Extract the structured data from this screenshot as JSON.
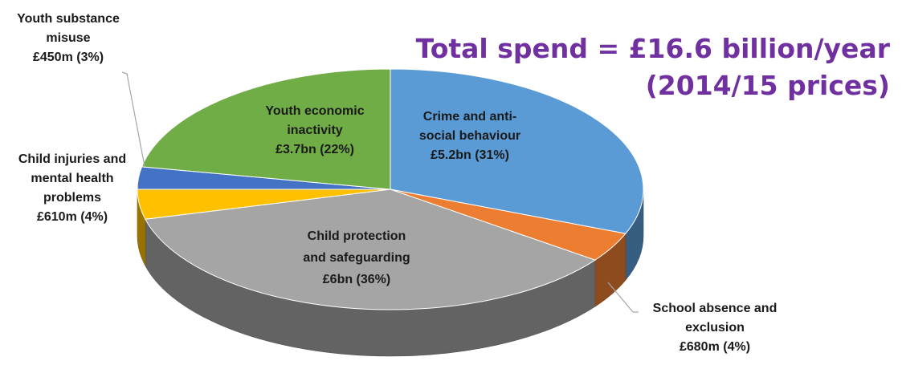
{
  "chart_data": {
    "type": "pie",
    "title": "Total spend = £16.6 billion/year",
    "subtitle": "(2014/15 prices)",
    "slices": [
      {
        "id": "crime",
        "label_lines": [
          "Crime and anti-",
          "social behaviour",
          "£5.2bn (31%)"
        ],
        "value_text": "£5.2bn",
        "value_bn": 5.2,
        "percent": 31,
        "color": "#5b9bd5"
      },
      {
        "id": "school",
        "label_lines": [
          "School absence and",
          "exclusion",
          "£680m (4%)"
        ],
        "value_text": "£680m",
        "value_bn": 0.68,
        "percent": 4,
        "color": "#ed7d31"
      },
      {
        "id": "protection",
        "label_lines": [
          "Child protection",
          "and safeguarding",
          "£6bn (36%)"
        ],
        "value_text": "£6bn",
        "value_bn": 6.0,
        "percent": 36,
        "color": "#a5a5a5"
      },
      {
        "id": "injuries",
        "label_lines": [
          "Child injuries and",
          "mental health",
          "problems",
          "£610m (4%)"
        ],
        "value_text": "£610m",
        "value_bn": 0.61,
        "percent": 4,
        "color": "#ffc000"
      },
      {
        "id": "substance",
        "label_lines": [
          "Youth substance",
          "misuse",
          "£450m (3%)"
        ],
        "value_text": "£450m",
        "value_bn": 0.45,
        "percent": 3,
        "color": "#4472c4"
      },
      {
        "id": "economic",
        "label_lines": [
          "Youth economic",
          "inactivity",
          "£3.7bn (22%)"
        ],
        "value_text": "£3.7bn",
        "value_bn": 3.7,
        "percent": 22,
        "color": "#70ad47"
      }
    ]
  }
}
